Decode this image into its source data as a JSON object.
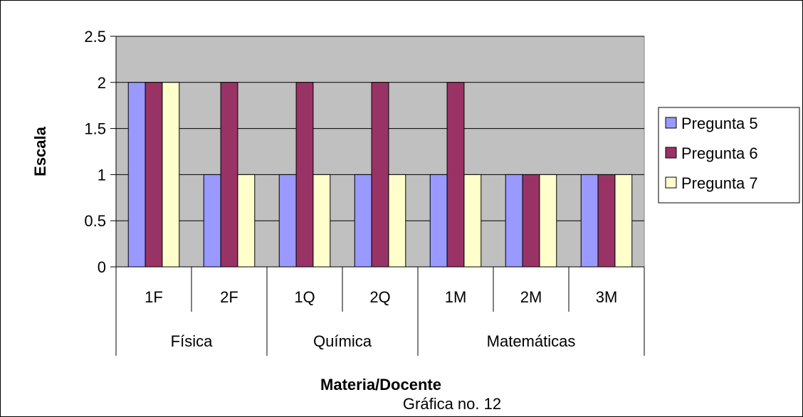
{
  "chart_data": {
    "type": "bar",
    "categories": [
      "1F",
      "2F",
      "1Q",
      "2Q",
      "1M",
      "2M",
      "3M"
    ],
    "groups": [
      {
        "label": "Física",
        "categories": [
          "1F",
          "2F"
        ]
      },
      {
        "label": "Química",
        "categories": [
          "1Q",
          "2Q"
        ]
      },
      {
        "label": "Matemáticas",
        "categories": [
          "1M",
          "2M",
          "3M"
        ]
      }
    ],
    "series": [
      {
        "name": "Pregunta 5",
        "color": "#9999ff",
        "values": [
          2,
          1,
          1,
          1,
          1,
          1,
          1
        ]
      },
      {
        "name": "Pregunta 6",
        "color": "#993366",
        "values": [
          2,
          2,
          2,
          2,
          2,
          1,
          1
        ]
      },
      {
        "name": "Pregunta 7",
        "color": "#ffffcc",
        "values": [
          2,
          1,
          1,
          1,
          1,
          1,
          1
        ]
      }
    ],
    "yticks": [
      "0",
      "0.5",
      "1",
      "1.5",
      "2",
      "2.5"
    ],
    "ylim": [
      0,
      2.5
    ],
    "ylabel": "Escala",
    "xlabel": "Materia/Docente",
    "caption": "Gráfica no. 12",
    "plot_background": "#c0c0c0",
    "grid": true,
    "legend_position": "right"
  }
}
